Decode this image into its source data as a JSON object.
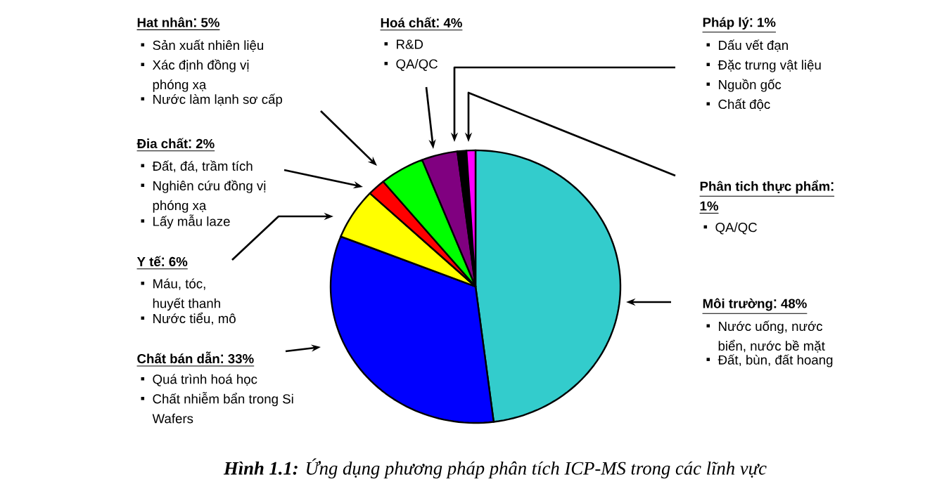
{
  "chart_data": {
    "type": "pie",
    "categories": [
      "Môi trường",
      "Chất bán dẫn",
      "Y tế",
      "Đia chất",
      "Hat nhân",
      "Hoá chất",
      "Pháp lý",
      "Phân tich thực phẩm"
    ],
    "values": [
      48,
      33,
      6,
      2,
      5,
      4,
      1,
      1
    ],
    "value_labels": [
      "48%",
      "33%",
      "6%",
      "2%",
      "5%",
      "4%",
      "1%",
      "1%"
    ],
    "legend": "left",
    "colors": [
      "#33cccc",
      "#0000ff",
      "#ffff00",
      "#ff0000",
      "#00ff00",
      "#800080",
      "#000000",
      "#ff00ff"
    ],
    "annotations": [
      "Nước uống, nước biển, nước bề mặt",
      "Đất, bùn, đất hoang",
      "Quá trình hoá học",
      "Chất nhiễm bẩn trong Si Wafers",
      "Máu, tóc, huyết thanh",
      "Nước tiểu, mô",
      "Đất, đá, trầm tích",
      "Nghiên cứu đồng vị phóng xạ",
      "Lấy mẫu laze",
      "Sản xuất nhiên liệu",
      "Xác định đồng vị phóng xạ",
      "Nước làm lạnh sơ cấp",
      "R&D",
      "QA/QC",
      "Dấu vết đạn",
      "Đặc trưng vật liệu",
      "Nguồn gốc",
      "Chất độc",
      "QA/QC",
      "**Hình 1.1:** Ứng dụng phương pháp phân tích ICP-MS trong các lĩnh vực"
    ]
  }
}
